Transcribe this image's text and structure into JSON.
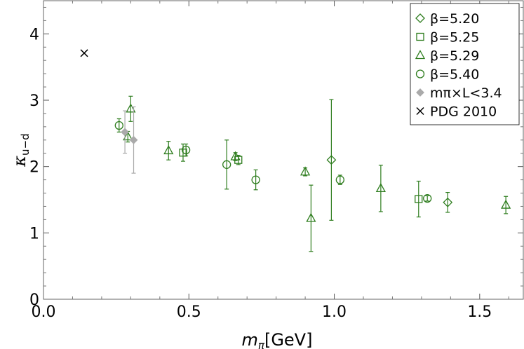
{
  "chart_data": {
    "type": "scatter",
    "xlabel": "mπ[GeV]",
    "ylabel": "κu−d",
    "xlim": [
      0.0,
      1.65
    ],
    "ylim": [
      0.0,
      4.5
    ],
    "xticks": [
      "0.0",
      "0.5",
      "1.0",
      "1.5"
    ],
    "yticks": [
      "0",
      "1",
      "2",
      "3",
      "4"
    ],
    "grid": false,
    "legend_position": "top-right",
    "colors": {
      "green": "#2e7d1e",
      "gray": "#aaaaaa",
      "black": "#000000"
    },
    "series": [
      {
        "name": "β=5.20",
        "marker": "diamond",
        "color": "#2e7d1e",
        "points": [
          {
            "x": 0.99,
            "y": 2.1,
            "err": 0.91
          },
          {
            "x": 1.39,
            "y": 1.46,
            "err": 0.15
          }
        ]
      },
      {
        "name": "β=5.25",
        "marker": "square",
        "color": "#2e7d1e",
        "points": [
          {
            "x": 0.48,
            "y": 2.21,
            "err": 0.13
          },
          {
            "x": 0.67,
            "y": 2.1,
            "err": 0.07
          },
          {
            "x": 1.29,
            "y": 1.51,
            "err": 0.27
          }
        ]
      },
      {
        "name": "β=5.29",
        "marker": "triangle",
        "color": "#2e7d1e",
        "points": [
          {
            "x": 0.29,
            "y": 2.45,
            "err": 0.08
          },
          {
            "x": 0.3,
            "y": 2.87,
            "err": 0.19
          },
          {
            "x": 0.43,
            "y": 2.24,
            "err": 0.14
          },
          {
            "x": 0.66,
            "y": 2.15,
            "err": 0.06
          },
          {
            "x": 0.9,
            "y": 1.92,
            "err": 0.06
          },
          {
            "x": 0.92,
            "y": 1.22,
            "err": 0.5
          },
          {
            "x": 1.16,
            "y": 1.67,
            "err": 0.35
          },
          {
            "x": 1.59,
            "y": 1.42,
            "err": 0.13
          }
        ]
      },
      {
        "name": "β=5.40",
        "marker": "circle",
        "color": "#2e7d1e",
        "points": [
          {
            "x": 0.26,
            "y": 2.62,
            "err": 0.1
          },
          {
            "x": 0.49,
            "y": 2.25,
            "err": 0.09
          },
          {
            "x": 0.63,
            "y": 2.03,
            "err": 0.37
          },
          {
            "x": 0.73,
            "y": 1.8,
            "err": 0.15
          },
          {
            "x": 1.02,
            "y": 1.8,
            "err": 0.07
          },
          {
            "x": 1.32,
            "y": 1.52,
            "err": 0.04
          }
        ]
      },
      {
        "name": "mπ×L<3.4",
        "marker": "filled-diamond",
        "color": "#aaaaaa",
        "points": [
          {
            "x": 0.28,
            "y": 2.52,
            "err": 0.32
          },
          {
            "x": 0.31,
            "y": 2.4,
            "err": 0.5
          }
        ]
      },
      {
        "name": "PDG 2010",
        "marker": "cross",
        "color": "#000000",
        "points": [
          {
            "x": 0.14,
            "y": 3.71,
            "err": 0
          }
        ]
      }
    ]
  }
}
